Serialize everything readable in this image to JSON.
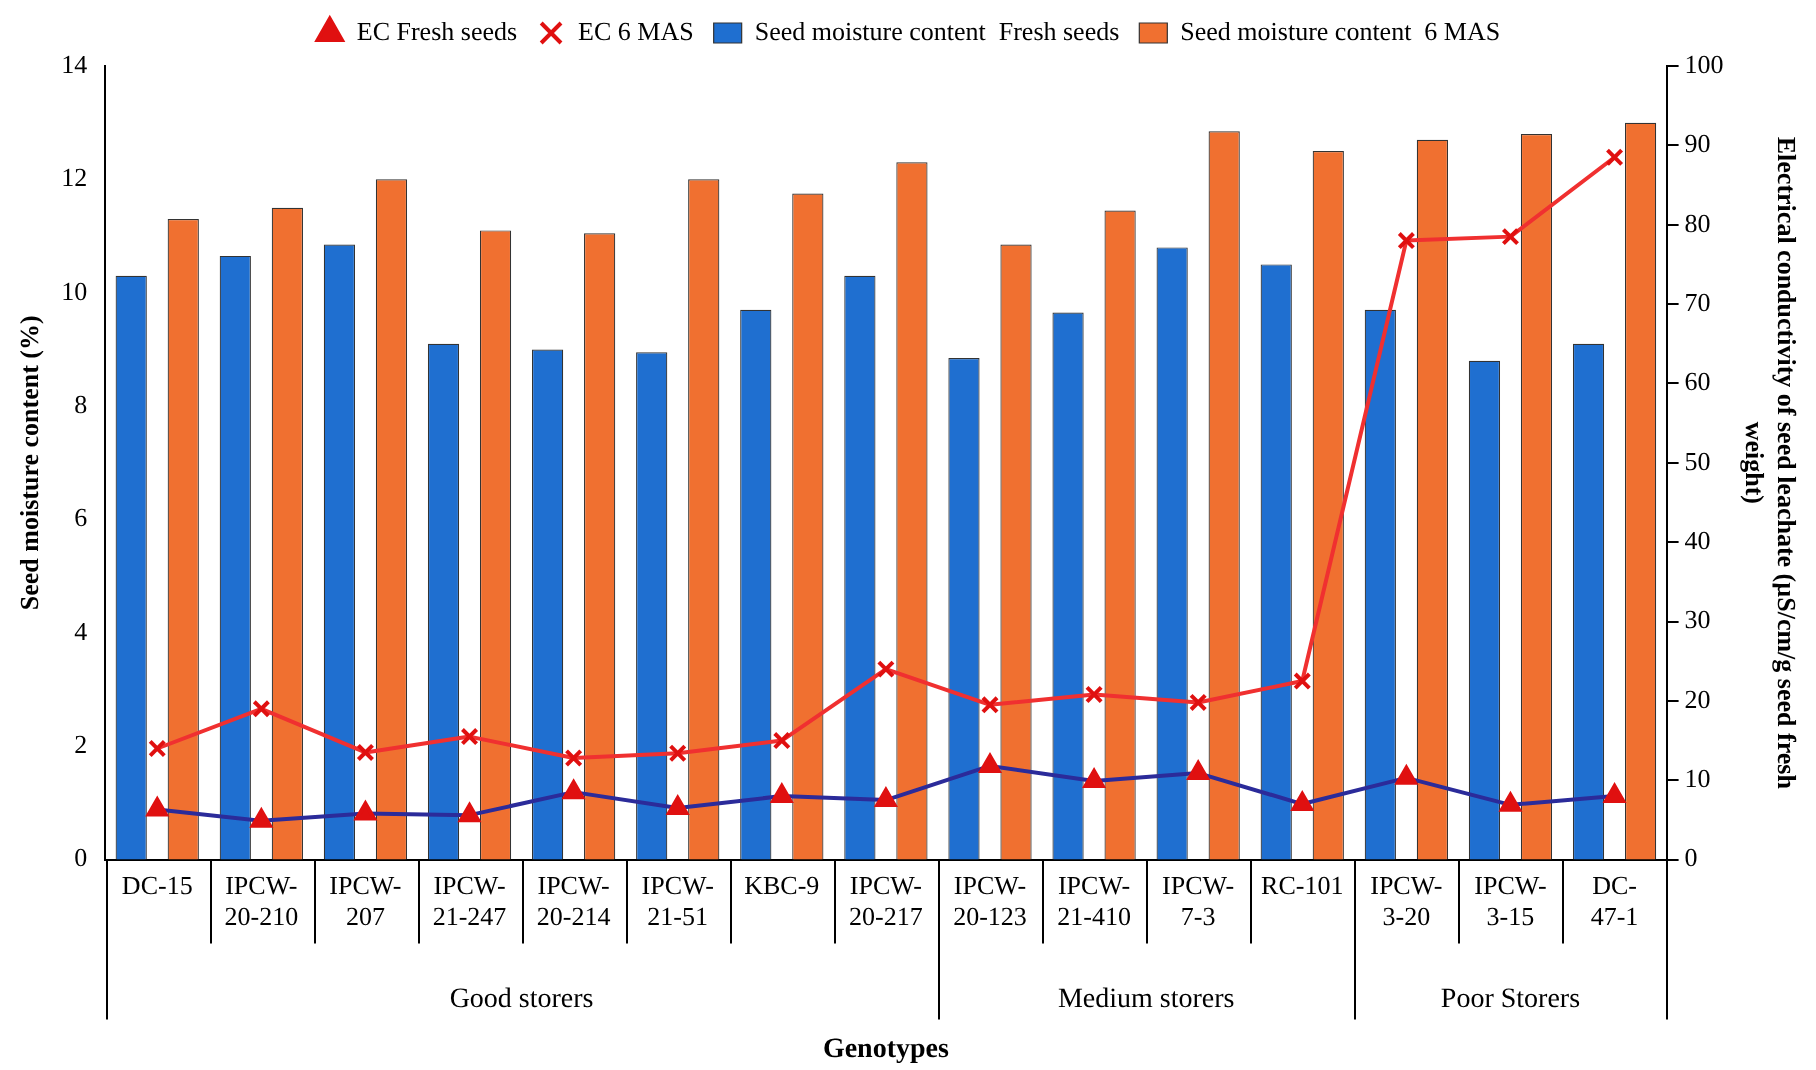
{
  "chart_data": {
    "type": "bar",
    "xlabel": "Genotypes",
    "ylabel": "Seed moisture content (%)",
    "y2label": "Electrical conductivity of seed leachate (µS/cm/g seed fresh weight)",
    "categories": [
      "DC-15",
      "IPCW-20-210",
      "IPCW-207",
      "IPCW-21-247",
      "IPCW-20-214",
      "IPCW-21-51",
      "KBC-9",
      "IPCW-20-217",
      "IPCW-20-123",
      "IPCW-21-410",
      "IPCW-7-3",
      "RC-101",
      "IPCW-3-20",
      "IPCW-3-15",
      "DC-47-1"
    ],
    "series": [
      {
        "name": "Seed moisture content  Fresh seeds",
        "color": "#1f6fd0",
        "values": [
          10.3,
          10.65,
          10.85,
          9.1,
          9.0,
          8.95,
          9.7,
          10.3,
          8.85,
          9.65,
          10.8,
          10.5,
          9.7,
          8.8,
          9.1
        ]
      },
      {
        "name": "Seed moisture content  6 MAS",
        "color": "#f07030",
        "values": [
          11.3,
          11.5,
          12.0,
          11.1,
          11.05,
          12.0,
          11.75,
          12.3,
          10.85,
          11.45,
          12.85,
          12.5,
          12.7,
          12.8,
          13.0
        ]
      },
      {
        "name": "EC Fresh seeds",
        "type": "line",
        "axis": "y2",
        "marker": "triangle",
        "color": "#2b2b9a",
        "values": [
          6.3,
          4.9,
          5.8,
          5.6,
          8.5,
          6.5,
          8,
          7.5,
          11.8,
          9.9,
          10.9,
          7.0,
          10.3,
          6.9,
          8.0
        ]
      },
      {
        "name": "EC 6 MAS",
        "type": "line",
        "axis": "y2",
        "marker": "cross",
        "color": "#f03030",
        "values": [
          14,
          19,
          13.5,
          15.5,
          12.8,
          13.4,
          15,
          24,
          19.5,
          20.8,
          19.8,
          22.5,
          78,
          78.5,
          88.5
        ]
      }
    ],
    "ylim": [
      0,
      14
    ],
    "yticks": [
      0,
      2,
      4,
      6,
      8,
      10,
      12,
      14
    ],
    "y2lim": [
      0,
      100
    ],
    "y2ticks": [
      0,
      10,
      20,
      30,
      40,
      50,
      60,
      70,
      80,
      90,
      100
    ],
    "annotations": [
      "Good storers",
      "Medium storers",
      "Poor Storers"
    ],
    "grid": false,
    "legend": "top"
  }
}
